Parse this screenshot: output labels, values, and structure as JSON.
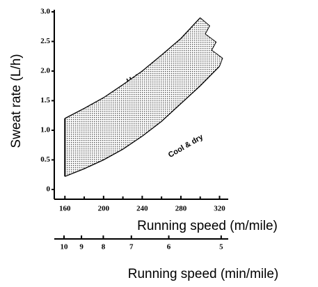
{
  "chart_data": {
    "type": "area-band",
    "ylabel": "Sweat rate (L/h)",
    "xlabel": "Running speed (m/mile)",
    "x2label": "Running speed (min/mile)",
    "annotations": [
      "Hot & humid",
      "Cool & dry"
    ],
    "x": [
      160,
      180,
      200,
      220,
      240,
      260,
      280,
      300,
      320
    ],
    "series": [
      {
        "name": "Hot & humid",
        "color": "#000000",
        "values": [
          1.2,
          1.37,
          1.55,
          1.77,
          2.0,
          2.27,
          2.55,
          2.9,
          null
        ]
      },
      {
        "name": "Cool & dry",
        "color": "#000000",
        "values": [
          0.22,
          0.35,
          0.5,
          0.68,
          0.9,
          1.15,
          1.45,
          1.75,
          2.08
        ]
      }
    ],
    "fill": "dotted",
    "xlim": [
      149,
      329
    ],
    "xticks": [
      160,
      200,
      240,
      280,
      320
    ],
    "xminor": [
      180,
      220,
      260,
      300
    ],
    "x2scale": "reciprocal",
    "x2lim": [
      10.66,
      4.89
    ],
    "x2ticks": [
      10,
      9,
      8,
      7,
      6,
      5
    ],
    "ylim": [
      0,
      3
    ],
    "yticks": [
      0,
      0.5,
      {
        "value": 1,
        "label": "1.0"
      },
      1.5,
      {
        "value": 2,
        "label": "2.0"
      },
      2.5,
      {
        "value": 3,
        "label": "3.0"
      }
    ]
  }
}
